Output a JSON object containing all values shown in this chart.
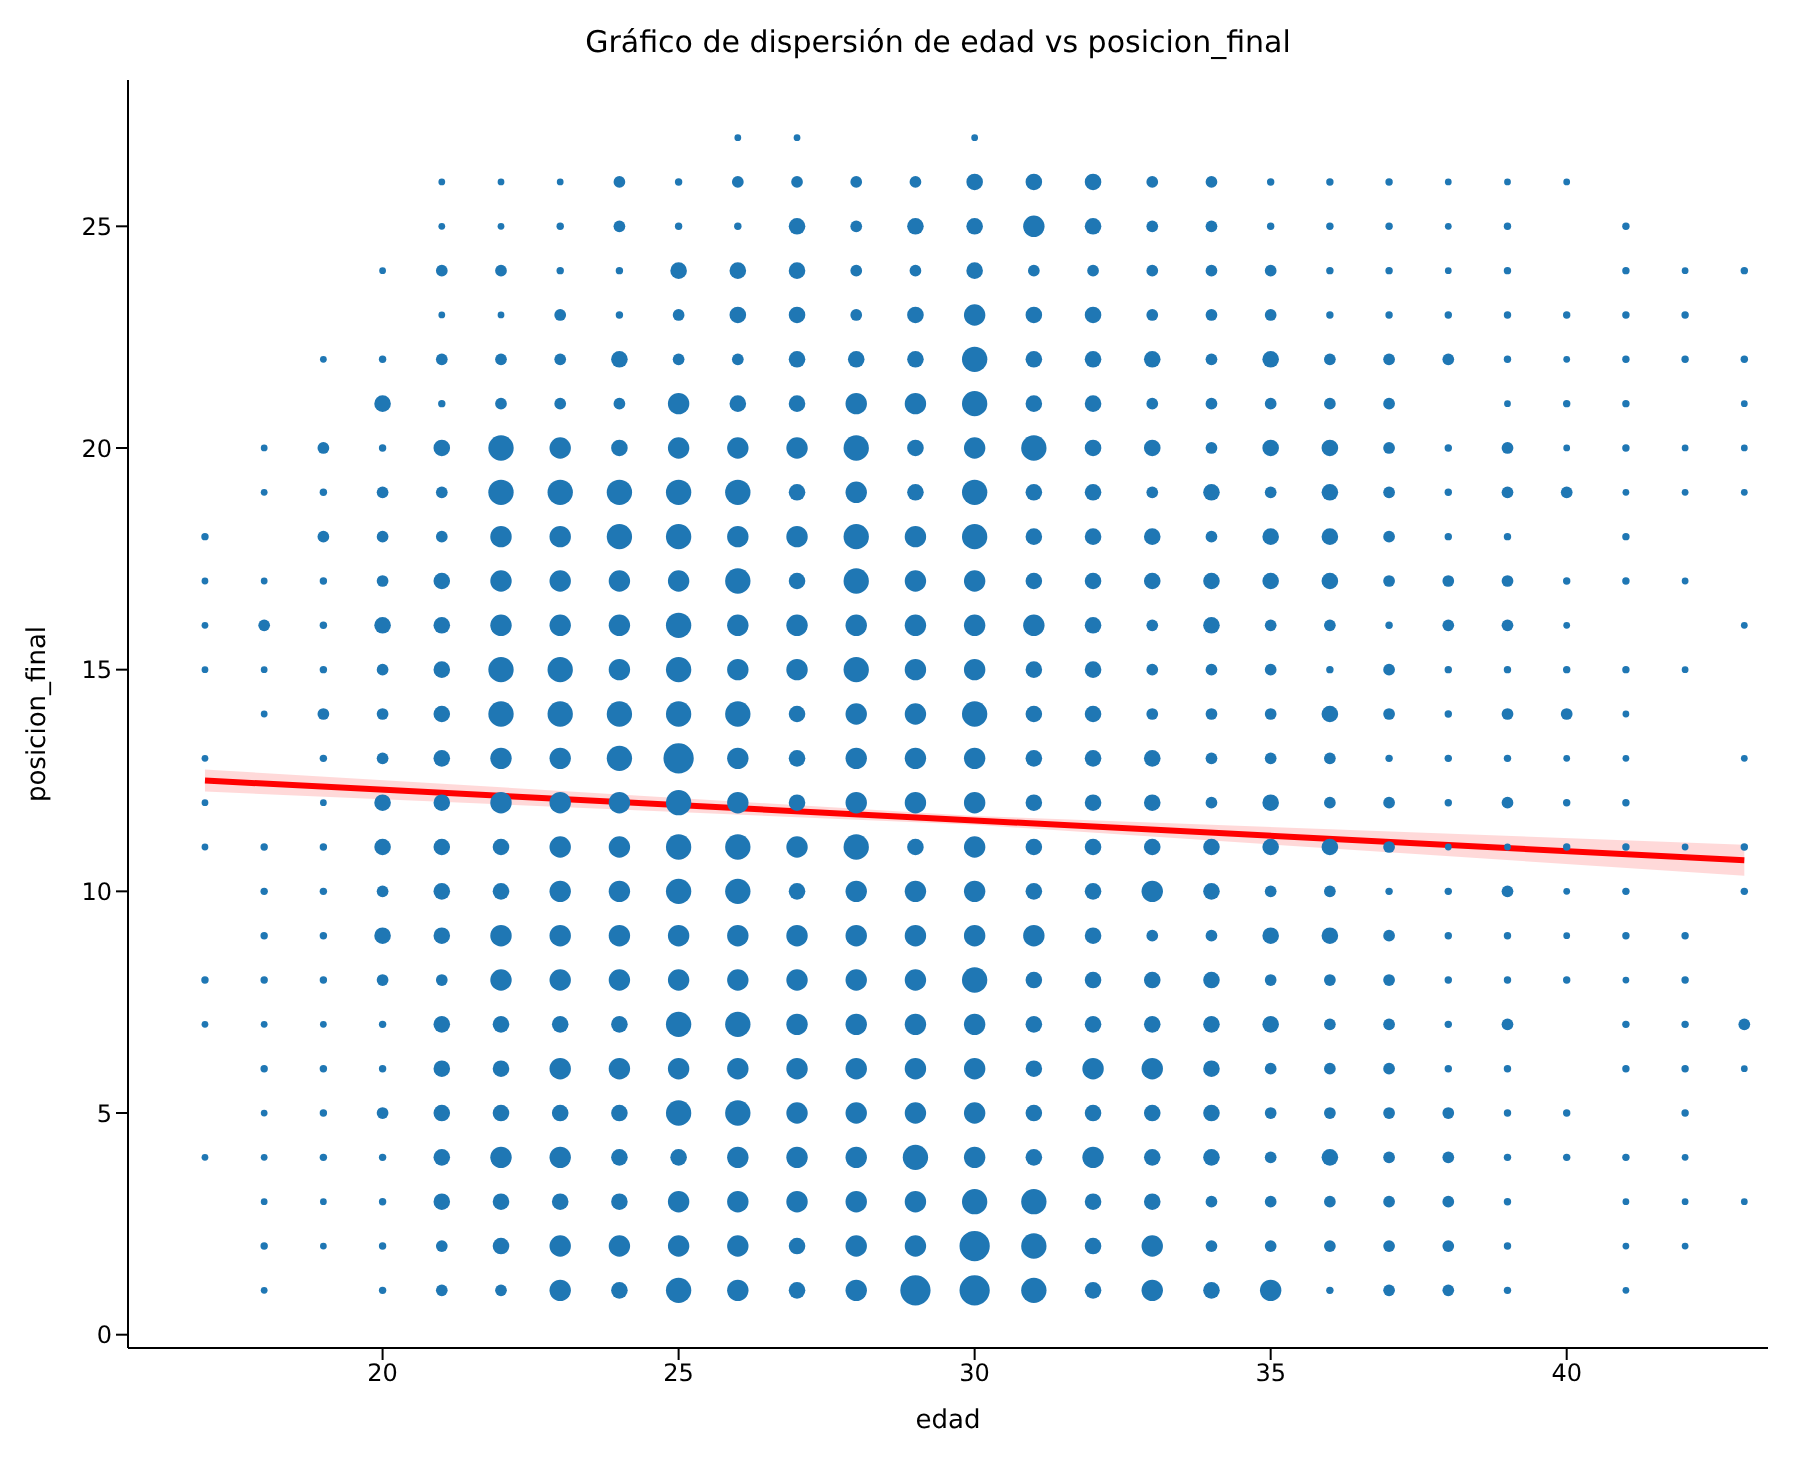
{
  "chart_data": {
    "type": "bubble",
    "title": "Gráfico de dispersión de edad vs posicion_final",
    "xlabel": "edad",
    "ylabel": "posicion_final",
    "xlim": [
      15.7,
      43.4
    ],
    "ylim": [
      -0.3,
      28.3
    ],
    "xticks": [
      20,
      25,
      30,
      35,
      40
    ],
    "yticks": [
      0,
      5,
      10,
      15,
      20,
      25
    ],
    "series": [
      {
        "color": "#1f77b4",
        "x": [
          17,
          17,
          17,
          17,
          17,
          17,
          17,
          17,
          17,
          17
        ],
        "values": [
          18,
          17,
          16,
          15,
          13,
          12,
          11,
          8,
          7,
          4
        ],
        "sizes": [
          0.06,
          0.05,
          0.05,
          0.05,
          0.05,
          0.05,
          0.05,
          0.06,
          0.05,
          0.05
        ]
      },
      {
        "color": "#1f77b4",
        "x": [
          18,
          18,
          18,
          18,
          18,
          18,
          18,
          18,
          18,
          18,
          18,
          18,
          18,
          18,
          18,
          18,
          18
        ],
        "values": [
          20,
          19,
          17,
          16,
          15,
          14,
          11,
          10,
          9,
          8,
          7,
          6,
          5,
          4,
          3,
          2,
          1
        ],
        "sizes": [
          0.05,
          0.05,
          0.05,
          0.15,
          0.05,
          0.05,
          0.06,
          0.06,
          0.06,
          0.06,
          0.05,
          0.06,
          0.05,
          0.05,
          0.05,
          0.06,
          0.05
        ]
      },
      {
        "color": "#1f77b4",
        "x": [
          19,
          19,
          19,
          19,
          19,
          19,
          19,
          19,
          19,
          19,
          19,
          19,
          19,
          19,
          19,
          19,
          19,
          19,
          19,
          19
        ],
        "values": [
          22,
          20,
          19,
          18,
          17,
          16,
          15,
          14,
          13,
          12,
          11,
          10,
          9,
          8,
          7,
          6,
          5,
          4,
          3,
          2
        ],
        "sizes": [
          0.05,
          0.15,
          0.06,
          0.15,
          0.06,
          0.06,
          0.06,
          0.15,
          0.06,
          0.05,
          0.06,
          0.06,
          0.06,
          0.06,
          0.05,
          0.06,
          0.06,
          0.06,
          0.05,
          0.05
        ]
      },
      {
        "color": "#1f77b4",
        "x": [
          20,
          20,
          20,
          20,
          20,
          20,
          20,
          20,
          20,
          20,
          20,
          20,
          20,
          20,
          20,
          20,
          20,
          20,
          20,
          20,
          20,
          20,
          20
        ],
        "values": [
          24,
          22,
          21,
          20,
          19,
          18,
          17,
          16,
          15,
          14,
          13,
          12,
          11,
          10,
          9,
          8,
          7,
          6,
          5,
          4,
          3,
          2,
          1
        ],
        "sizes": [
          0.05,
          0.06,
          0.3,
          0.06,
          0.15,
          0.15,
          0.15,
          0.3,
          0.15,
          0.15,
          0.15,
          0.3,
          0.3,
          0.15,
          0.3,
          0.15,
          0.06,
          0.06,
          0.15,
          0.06,
          0.06,
          0.06,
          0.06
        ]
      },
      {
        "color": "#1f77b4",
        "x": [
          21,
          21,
          21,
          21,
          21,
          21,
          21,
          21,
          21,
          21,
          21,
          21,
          21,
          21,
          21,
          21,
          21,
          21,
          21,
          21,
          21,
          21,
          21,
          21,
          21,
          21
        ],
        "values": [
          26,
          25,
          24,
          23,
          22,
          21,
          20,
          19,
          18,
          17,
          16,
          15,
          14,
          13,
          12,
          11,
          10,
          9,
          8,
          7,
          6,
          5,
          4,
          3,
          2,
          1
        ],
        "sizes": [
          0.05,
          0.05,
          0.15,
          0.05,
          0.15,
          0.06,
          0.3,
          0.15,
          0.15,
          0.3,
          0.3,
          0.3,
          0.3,
          0.3,
          0.3,
          0.3,
          0.3,
          0.3,
          0.15,
          0.3,
          0.3,
          0.3,
          0.3,
          0.3,
          0.15,
          0.15
        ]
      },
      {
        "color": "#1f77b4",
        "x": [
          22,
          22,
          22,
          22,
          22,
          22,
          22,
          22,
          22,
          22,
          22,
          22,
          22,
          22,
          22,
          22,
          22,
          22,
          22,
          22,
          22,
          22,
          22,
          22,
          22,
          22
        ],
        "values": [
          26,
          25,
          24,
          23,
          22,
          21,
          20,
          19,
          18,
          17,
          16,
          15,
          14,
          13,
          12,
          11,
          10,
          9,
          8,
          7,
          6,
          5,
          4,
          3,
          2,
          1
        ],
        "sizes": [
          0.05,
          0.05,
          0.15,
          0.05,
          0.15,
          0.15,
          0.7,
          0.7,
          0.5,
          0.5,
          0.5,
          0.7,
          0.7,
          0.5,
          0.5,
          0.3,
          0.3,
          0.5,
          0.5,
          0.3,
          0.3,
          0.3,
          0.5,
          0.3,
          0.3,
          0.15
        ]
      },
      {
        "color": "#1f77b4",
        "x": [
          23,
          23,
          23,
          23,
          23,
          23,
          23,
          23,
          23,
          23,
          23,
          23,
          23,
          23,
          23,
          23,
          23,
          23,
          23,
          23,
          23,
          23,
          23,
          23,
          23,
          23
        ],
        "values": [
          26,
          25,
          24,
          23,
          22,
          21,
          20,
          19,
          18,
          17,
          16,
          15,
          14,
          13,
          12,
          11,
          10,
          9,
          8,
          7,
          6,
          5,
          4,
          3,
          2,
          1
        ],
        "sizes": [
          0.05,
          0.06,
          0.06,
          0.15,
          0.15,
          0.15,
          0.5,
          0.7,
          0.5,
          0.5,
          0.5,
          0.7,
          0.7,
          0.5,
          0.5,
          0.5,
          0.5,
          0.5,
          0.5,
          0.3,
          0.5,
          0.3,
          0.5,
          0.3,
          0.5,
          0.5
        ]
      },
      {
        "color": "#1f77b4",
        "x": [
          24,
          24,
          24,
          24,
          24,
          24,
          24,
          24,
          24,
          24,
          24,
          24,
          24,
          24,
          24,
          24,
          24,
          24,
          24,
          24,
          24,
          24,
          24,
          24,
          24,
          24
        ],
        "values": [
          26,
          25,
          24,
          23,
          22,
          21,
          20,
          19,
          18,
          17,
          16,
          15,
          14,
          13,
          12,
          11,
          10,
          9,
          8,
          7,
          6,
          5,
          4,
          3,
          2,
          1
        ],
        "sizes": [
          0.15,
          0.15,
          0.06,
          0.06,
          0.3,
          0.15,
          0.3,
          0.7,
          0.7,
          0.5,
          0.5,
          0.5,
          0.7,
          0.7,
          0.5,
          0.5,
          0.5,
          0.5,
          0.5,
          0.3,
          0.5,
          0.3,
          0.3,
          0.3,
          0.5,
          0.3
        ]
      },
      {
        "color": "#1f77b4",
        "x": [
          25,
          25,
          25,
          25,
          25,
          25,
          25,
          25,
          25,
          25,
          25,
          25,
          25,
          25,
          25,
          25,
          25,
          25,
          25,
          25,
          25,
          25,
          25,
          25,
          25,
          25
        ],
        "values": [
          26,
          25,
          24,
          23,
          22,
          21,
          20,
          19,
          18,
          17,
          16,
          15,
          14,
          13,
          12,
          11,
          10,
          9,
          8,
          7,
          6,
          5,
          4,
          3,
          2,
          1
        ],
        "sizes": [
          0.06,
          0.06,
          0.3,
          0.15,
          0.15,
          0.5,
          0.5,
          0.7,
          0.7,
          0.5,
          0.7,
          0.7,
          0.7,
          1,
          0.7,
          0.7,
          0.7,
          0.5,
          0.5,
          0.7,
          0.5,
          0.7,
          0.3,
          0.5,
          0.5,
          0.7
        ]
      },
      {
        "color": "#1f77b4",
        "x": [
          26,
          26,
          26,
          26,
          26,
          26,
          26,
          26,
          26,
          26,
          26,
          26,
          26,
          26,
          26,
          26,
          26,
          26,
          26,
          26,
          26,
          26,
          26,
          26,
          26,
          26,
          26
        ],
        "values": [
          27,
          26,
          25,
          24,
          23,
          22,
          21,
          20,
          19,
          18,
          17,
          16,
          15,
          14,
          13,
          12,
          11,
          10,
          9,
          8,
          7,
          6,
          5,
          4,
          3,
          2,
          1
        ],
        "sizes": [
          0.05,
          0.15,
          0.06,
          0.3,
          0.3,
          0.15,
          0.3,
          0.5,
          0.7,
          0.5,
          0.7,
          0.5,
          0.5,
          0.7,
          0.5,
          0.5,
          0.7,
          0.7,
          0.5,
          0.5,
          0.7,
          0.5,
          0.7,
          0.5,
          0.5,
          0.5,
          0.5
        ]
      },
      {
        "color": "#1f77b4",
        "x": [
          27,
          27,
          27,
          27,
          27,
          27,
          27,
          27,
          27,
          27,
          27,
          27,
          27,
          27,
          27,
          27,
          27,
          27,
          27,
          27,
          27,
          27,
          27,
          27,
          27,
          27,
          27
        ],
        "values": [
          27,
          26,
          25,
          24,
          23,
          22,
          21,
          20,
          19,
          18,
          17,
          16,
          15,
          14,
          13,
          12,
          11,
          10,
          9,
          8,
          7,
          6,
          5,
          4,
          3,
          2,
          1
        ],
        "sizes": [
          0.05,
          0.15,
          0.3,
          0.3,
          0.3,
          0.3,
          0.3,
          0.5,
          0.3,
          0.5,
          0.3,
          0.5,
          0.5,
          0.3,
          0.3,
          0.3,
          0.5,
          0.3,
          0.5,
          0.5,
          0.5,
          0.5,
          0.5,
          0.5,
          0.5,
          0.3,
          0.3
        ]
      },
      {
        "color": "#1f77b4",
        "x": [
          28,
          28,
          28,
          28,
          28,
          28,
          28,
          28,
          28,
          28,
          28,
          28,
          28,
          28,
          28,
          28,
          28,
          28,
          28,
          28,
          28,
          28,
          28,
          28,
          28,
          28
        ],
        "values": [
          26,
          25,
          24,
          23,
          22,
          21,
          20,
          19,
          18,
          17,
          16,
          15,
          14,
          13,
          12,
          11,
          10,
          9,
          8,
          7,
          6,
          5,
          4,
          3,
          2,
          1
        ],
        "sizes": [
          0.15,
          0.15,
          0.15,
          0.15,
          0.3,
          0.5,
          0.7,
          0.5,
          0.7,
          0.7,
          0.5,
          0.7,
          0.5,
          0.5,
          0.5,
          0.7,
          0.5,
          0.5,
          0.5,
          0.5,
          0.5,
          0.5,
          0.5,
          0.5,
          0.5,
          0.5
        ]
      },
      {
        "color": "#1f77b4",
        "x": [
          29,
          29,
          29,
          29,
          29,
          29,
          29,
          29,
          29,
          29,
          29,
          29,
          29,
          29,
          29,
          29,
          29,
          29,
          29,
          29,
          29,
          29,
          29,
          29,
          29,
          29
        ],
        "values": [
          26,
          25,
          24,
          23,
          22,
          21,
          20,
          19,
          18,
          17,
          16,
          15,
          14,
          13,
          12,
          11,
          10,
          9,
          8,
          7,
          6,
          5,
          4,
          3,
          2,
          1
        ],
        "sizes": [
          0.15,
          0.3,
          0.15,
          0.3,
          0.3,
          0.5,
          0.3,
          0.3,
          0.5,
          0.5,
          0.5,
          0.5,
          0.5,
          0.5,
          0.5,
          0.3,
          0.5,
          0.5,
          0.5,
          0.5,
          0.5,
          0.5,
          0.7,
          0.5,
          0.5,
          1
        ]
      },
      {
        "color": "#1f77b4",
        "x": [
          30,
          30,
          30,
          30,
          30,
          30,
          30,
          30,
          30,
          30,
          30,
          30,
          30,
          30,
          30,
          30,
          30,
          30,
          30,
          30,
          30,
          30,
          30,
          30,
          30,
          30,
          30
        ],
        "values": [
          27,
          26,
          25,
          24,
          23,
          22,
          21,
          20,
          19,
          18,
          17,
          16,
          15,
          14,
          13,
          12,
          11,
          10,
          9,
          8,
          7,
          6,
          5,
          4,
          3,
          2,
          1
        ],
        "sizes": [
          0.05,
          0.3,
          0.3,
          0.3,
          0.5,
          0.7,
          0.7,
          0.5,
          0.7,
          0.7,
          0.5,
          0.5,
          0.5,
          0.7,
          0.5,
          0.5,
          0.5,
          0.5,
          0.5,
          0.7,
          0.5,
          0.5,
          0.5,
          0.5,
          0.7,
          1,
          1
        ]
      },
      {
        "color": "#1f77b4",
        "x": [
          31,
          31,
          31,
          31,
          31,
          31,
          31,
          31,
          31,
          31,
          31,
          31,
          31,
          31,
          31,
          31,
          31,
          31,
          31,
          31,
          31,
          31,
          31,
          31,
          31,
          31
        ],
        "values": [
          26,
          25,
          24,
          23,
          22,
          21,
          20,
          19,
          18,
          17,
          16,
          15,
          14,
          13,
          12,
          11,
          10,
          9,
          8,
          7,
          6,
          5,
          4,
          3,
          2,
          1
        ],
        "sizes": [
          0.3,
          0.5,
          0.15,
          0.3,
          0.3,
          0.3,
          0.7,
          0.3,
          0.3,
          0.3,
          0.5,
          0.3,
          0.3,
          0.3,
          0.3,
          0.3,
          0.3,
          0.5,
          0.3,
          0.3,
          0.3,
          0.3,
          0.3,
          0.7,
          0.7,
          0.7
        ]
      },
      {
        "color": "#1f77b4",
        "x": [
          32,
          32,
          32,
          32,
          32,
          32,
          32,
          32,
          32,
          32,
          32,
          32,
          32,
          32,
          32,
          32,
          32,
          32,
          32,
          32,
          32,
          32,
          32,
          32,
          32,
          32
        ],
        "values": [
          26,
          25,
          24,
          23,
          22,
          21,
          20,
          19,
          18,
          17,
          16,
          15,
          14,
          13,
          12,
          11,
          10,
          9,
          8,
          7,
          6,
          5,
          4,
          3,
          2,
          1
        ],
        "sizes": [
          0.3,
          0.3,
          0.15,
          0.3,
          0.3,
          0.3,
          0.3,
          0.3,
          0.3,
          0.3,
          0.3,
          0.3,
          0.3,
          0.3,
          0.3,
          0.3,
          0.3,
          0.3,
          0.3,
          0.3,
          0.5,
          0.3,
          0.5,
          0.3,
          0.3,
          0.3
        ]
      },
      {
        "color": "#1f77b4",
        "x": [
          33,
          33,
          33,
          33,
          33,
          33,
          33,
          33,
          33,
          33,
          33,
          33,
          33,
          33,
          33,
          33,
          33,
          33,
          33,
          33,
          33,
          33,
          33,
          33,
          33,
          33
        ],
        "values": [
          26,
          25,
          24,
          23,
          22,
          21,
          20,
          19,
          18,
          17,
          16,
          15,
          14,
          13,
          12,
          11,
          10,
          9,
          8,
          7,
          6,
          5,
          4,
          3,
          2,
          1
        ],
        "sizes": [
          0.15,
          0.15,
          0.15,
          0.15,
          0.3,
          0.15,
          0.3,
          0.15,
          0.3,
          0.3,
          0.15,
          0.15,
          0.15,
          0.3,
          0.3,
          0.3,
          0.5,
          0.15,
          0.3,
          0.3,
          0.5,
          0.3,
          0.3,
          0.3,
          0.5,
          0.5
        ]
      },
      {
        "color": "#1f77b4",
        "x": [
          34,
          34,
          34,
          34,
          34,
          34,
          34,
          34,
          34,
          34,
          34,
          34,
          34,
          34,
          34,
          34,
          34,
          34,
          34,
          34,
          34,
          34,
          34,
          34,
          34,
          34
        ],
        "values": [
          26,
          25,
          24,
          23,
          22,
          21,
          20,
          19,
          18,
          17,
          16,
          15,
          14,
          13,
          12,
          11,
          10,
          9,
          8,
          7,
          6,
          5,
          4,
          3,
          2,
          1
        ],
        "sizes": [
          0.15,
          0.15,
          0.15,
          0.15,
          0.15,
          0.15,
          0.15,
          0.3,
          0.15,
          0.3,
          0.3,
          0.15,
          0.15,
          0.15,
          0.15,
          0.3,
          0.3,
          0.15,
          0.3,
          0.3,
          0.3,
          0.3,
          0.3,
          0.15,
          0.15,
          0.3
        ]
      },
      {
        "color": "#1f77b4",
        "x": [
          35,
          35,
          35,
          35,
          35,
          35,
          35,
          35,
          35,
          35,
          35,
          35,
          35,
          35,
          35,
          35,
          35,
          35,
          35,
          35,
          35,
          35,
          35,
          35,
          35,
          35
        ],
        "values": [
          26,
          25,
          24,
          23,
          22,
          21,
          20,
          19,
          18,
          17,
          16,
          15,
          14,
          13,
          12,
          11,
          10,
          9,
          8,
          7,
          6,
          5,
          4,
          3,
          2,
          1
        ],
        "sizes": [
          0.06,
          0.06,
          0.15,
          0.15,
          0.3,
          0.15,
          0.3,
          0.15,
          0.3,
          0.3,
          0.15,
          0.15,
          0.15,
          0.15,
          0.3,
          0.3,
          0.15,
          0.3,
          0.15,
          0.3,
          0.15,
          0.15,
          0.15,
          0.15,
          0.15,
          0.5
        ]
      },
      {
        "color": "#1f77b4",
        "x": [
          36,
          36,
          36,
          36,
          36,
          36,
          36,
          36,
          36,
          36,
          36,
          36,
          36,
          36,
          36,
          36,
          36,
          36,
          36,
          36,
          36,
          36,
          36,
          36,
          36,
          36
        ],
        "values": [
          26,
          25,
          24,
          23,
          22,
          21,
          20,
          19,
          18,
          17,
          16,
          15,
          14,
          13,
          12,
          11,
          10,
          9,
          8,
          7,
          6,
          5,
          4,
          3,
          2,
          1
        ],
        "sizes": [
          0.06,
          0.06,
          0.06,
          0.06,
          0.15,
          0.15,
          0.3,
          0.3,
          0.3,
          0.3,
          0.15,
          0.06,
          0.3,
          0.15,
          0.15,
          0.3,
          0.15,
          0.3,
          0.15,
          0.15,
          0.15,
          0.15,
          0.3,
          0.15,
          0.15,
          0.06
        ]
      },
      {
        "color": "#1f77b4",
        "x": [
          37,
          37,
          37,
          37,
          37,
          37,
          37,
          37,
          37,
          37,
          37,
          37,
          37,
          37,
          37,
          37,
          37,
          37,
          37,
          37,
          37,
          37,
          37,
          37,
          37,
          37
        ],
        "values": [
          26,
          25,
          24,
          23,
          22,
          21,
          20,
          19,
          18,
          17,
          16,
          15,
          14,
          13,
          12,
          11,
          10,
          9,
          8,
          7,
          6,
          5,
          4,
          3,
          2,
          1
        ],
        "sizes": [
          0.06,
          0.06,
          0.06,
          0.06,
          0.15,
          0.15,
          0.15,
          0.15,
          0.15,
          0.15,
          0.06,
          0.15,
          0.15,
          0.06,
          0.15,
          0.15,
          0.06,
          0.15,
          0.15,
          0.15,
          0.15,
          0.15,
          0.15,
          0.15,
          0.15,
          0.15
        ]
      },
      {
        "color": "#1f77b4",
        "x": [
          38,
          38,
          38,
          38,
          38,
          38,
          38,
          38,
          38,
          38,
          38,
          38,
          38,
          38,
          38,
          38,
          38,
          38,
          38,
          38,
          38,
          38,
          38,
          38,
          38
        ],
        "values": [
          26,
          25,
          24,
          23,
          22,
          20,
          19,
          18,
          17,
          16,
          15,
          14,
          13,
          12,
          11,
          10,
          9,
          8,
          7,
          6,
          5,
          4,
          3,
          2,
          1
        ],
        "sizes": [
          0.05,
          0.05,
          0.05,
          0.06,
          0.15,
          0.06,
          0.06,
          0.06,
          0.15,
          0.15,
          0.06,
          0.06,
          0.06,
          0.06,
          0.05,
          0.06,
          0.06,
          0.06,
          0.06,
          0.06,
          0.15,
          0.15,
          0.15,
          0.15,
          0.15
        ]
      },
      {
        "color": "#1f77b4",
        "x": [
          39,
          39,
          39,
          39,
          39,
          39,
          39,
          39,
          39,
          39,
          39,
          39,
          39,
          39,
          39,
          39,
          39,
          39,
          39,
          39,
          39,
          39,
          39,
          39,
          39,
          39
        ],
        "values": [
          26,
          25,
          24,
          23,
          22,
          21,
          20,
          19,
          18,
          17,
          16,
          15,
          14,
          13,
          12,
          11,
          10,
          9,
          8,
          7,
          6,
          5,
          4,
          3,
          2,
          1
        ],
        "sizes": [
          0.05,
          0.06,
          0.06,
          0.06,
          0.06,
          0.05,
          0.15,
          0.15,
          0.06,
          0.15,
          0.15,
          0.06,
          0.15,
          0.06,
          0.15,
          0.05,
          0.15,
          0.06,
          0.06,
          0.15,
          0.06,
          0.06,
          0.06,
          0.06,
          0.06,
          0.06
        ]
      },
      {
        "color": "#1f77b4",
        "x": [
          40,
          40,
          40,
          40,
          40,
          40,
          40,
          40,
          40,
          40,
          40,
          40,
          40,
          40,
          40,
          40,
          40,
          40
        ],
        "values": [
          26,
          23,
          22,
          21,
          20,
          19,
          17,
          16,
          15,
          14,
          13,
          12,
          11,
          10,
          9,
          8,
          5,
          4
        ],
        "sizes": [
          0.05,
          0.06,
          0.05,
          0.06,
          0.05,
          0.15,
          0.06,
          0.05,
          0.06,
          0.15,
          0.05,
          0.06,
          0.06,
          0.05,
          0.05,
          0.06,
          0.06,
          0.06
        ]
      },
      {
        "color": "#1f77b4",
        "x": [
          41,
          41,
          41,
          41,
          41,
          41,
          41,
          41,
          41,
          41,
          41,
          41,
          41,
          41,
          41,
          41,
          41,
          41,
          41,
          41,
          41,
          41,
          41
        ],
        "values": [
          25,
          24,
          23,
          22,
          21,
          20,
          19,
          18,
          17,
          15,
          14,
          13,
          12,
          11,
          10,
          9,
          8,
          7,
          6,
          4,
          3,
          2,
          1
        ],
        "sizes": [
          0.06,
          0.06,
          0.06,
          0.06,
          0.06,
          0.06,
          0.05,
          0.06,
          0.06,
          0.06,
          0.05,
          0.05,
          0.06,
          0.06,
          0.06,
          0.06,
          0.05,
          0.06,
          0.06,
          0.06,
          0.05,
          0.05,
          0.05
        ]
      },
      {
        "color": "#1f77b4",
        "x": [
          42,
          42,
          42,
          42,
          42,
          42,
          42,
          42,
          42,
          42,
          42,
          42,
          42,
          42,
          42,
          42
        ],
        "values": [
          24,
          23,
          22,
          20,
          19,
          17,
          15,
          11,
          9,
          8,
          7,
          6,
          5,
          4,
          3,
          2
        ],
        "sizes": [
          0.05,
          0.06,
          0.06,
          0.05,
          0.05,
          0.05,
          0.05,
          0.05,
          0.06,
          0.06,
          0.06,
          0.06,
          0.06,
          0.05,
          0.05,
          0.05
        ]
      },
      {
        "color": "#1f77b4",
        "x": [
          43,
          43,
          43,
          43,
          43,
          43,
          43,
          43,
          43,
          43,
          43,
          43
        ],
        "values": [
          24,
          22,
          21,
          20,
          19,
          16,
          13,
          11,
          10,
          7,
          6,
          3
        ],
        "sizes": [
          0.06,
          0.06,
          0.05,
          0.05,
          0.05,
          0.05,
          0.05,
          0.06,
          0.06,
          0.15,
          0.05,
          0.05
        ]
      },
      {
        "type": "line",
        "color": "#ff0000",
        "x": [
          17,
          30,
          43
        ],
        "values": [
          12.5,
          11.6,
          10.7
        ],
        "lower": [
          12.25,
          11.5,
          10.35
        ],
        "upper": [
          12.75,
          11.7,
          11.05
        ]
      }
    ]
  }
}
